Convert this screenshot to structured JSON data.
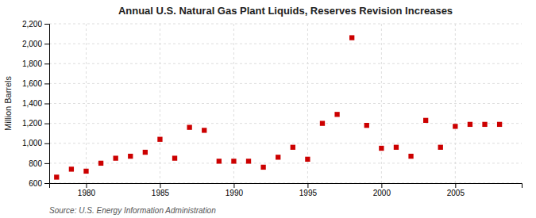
{
  "chart_data": {
    "type": "scatter",
    "title": "Annual U.S. Natural Gas Plant Liquids, Reserves Revision Increases",
    "ylabel": "Million Barrels",
    "annotation": "Source: U.S. Energy Information Administration",
    "x": [
      1978,
      1979,
      1980,
      1981,
      1982,
      1983,
      1984,
      1985,
      1986,
      1987,
      1988,
      1989,
      1990,
      1991,
      1992,
      1993,
      1994,
      1995,
      1996,
      1997,
      1998,
      1999,
      2000,
      2001,
      2002,
      2003,
      2004,
      2005,
      2006,
      2007,
      2008
    ],
    "values": [
      660,
      740,
      720,
      800,
      850,
      870,
      910,
      1040,
      850,
      1160,
      1130,
      820,
      820,
      820,
      760,
      860,
      960,
      840,
      1200,
      1290,
      2060,
      1180,
      950,
      960,
      870,
      1230,
      960,
      1170,
      1190,
      1190,
      1190
    ],
    "color": "#CC0000",
    "marker": "square",
    "xlim": [
      1977.5,
      2009.5
    ],
    "xticks": [
      1980,
      1985,
      1990,
      1995,
      2000,
      2005
    ],
    "ylim": [
      600,
      2200
    ],
    "yticks": [
      600,
      800,
      {
        "value": 1000,
        "label": "1,000"
      },
      {
        "value": 1200,
        "label": "1,200"
      },
      {
        "value": 1400,
        "label": "1,400"
      },
      {
        "value": 1600,
        "label": "1,600"
      },
      {
        "value": 1800,
        "label": "1,800"
      },
      {
        "value": 2000,
        "label": "2,000"
      },
      {
        "value": 2200,
        "label": "2,200"
      }
    ],
    "grid": true
  }
}
